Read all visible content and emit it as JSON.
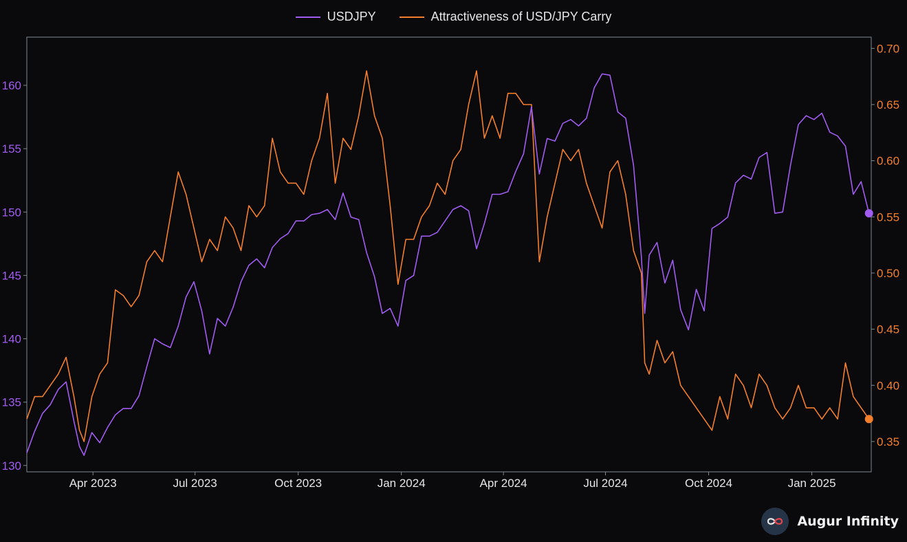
{
  "legend": {
    "series1": "USDJPY",
    "series2": "Attractiveness of USD/JPY Carry"
  },
  "brand": {
    "name": "Augur Infinity"
  },
  "colors": {
    "background": "#0a090c",
    "purple": "#a05cf0",
    "orange": "#f37f2c",
    "axis": "#7d8a94",
    "text": "#e6e6e6"
  },
  "chart_data": {
    "type": "line",
    "x_axis": {
      "ticks": [
        "Apr 2023",
        "Jul 2023",
        "Oct 2023",
        "Jan 2024",
        "Apr 2024",
        "Jul 2024",
        "Oct 2024",
        "Jan 2025"
      ],
      "range": [
        "2023-02-01",
        "2025-02-23"
      ]
    },
    "y_left": {
      "range": [
        129.5,
        163.8
      ],
      "ticks": [
        130,
        135,
        140,
        145,
        150,
        155,
        160
      ]
    },
    "y_right": {
      "range": [
        0.323,
        0.71
      ],
      "ticks": [
        "0.35",
        "0.40",
        "0.45",
        "0.50",
        "0.55",
        "0.60",
        "0.65",
        "0.70"
      ]
    },
    "grid": false,
    "legend_position": "top-center",
    "series": [
      {
        "name": "USDJPY",
        "axis": "left",
        "color": "#a05cf0",
        "end_marker": true,
        "points": [
          [
            "2023-02-01",
            131.0
          ],
          [
            "2023-02-08",
            132.7
          ],
          [
            "2023-02-15",
            134.1
          ],
          [
            "2023-02-22",
            134.8
          ],
          [
            "2023-03-01",
            136.0
          ],
          [
            "2023-03-08",
            136.6
          ],
          [
            "2023-03-15",
            133.5
          ],
          [
            "2023-03-20",
            131.5
          ],
          [
            "2023-03-24",
            130.8
          ],
          [
            "2023-03-31",
            132.6
          ],
          [
            "2023-04-07",
            131.8
          ],
          [
            "2023-04-14",
            133.0
          ],
          [
            "2023-04-21",
            134.0
          ],
          [
            "2023-04-28",
            134.5
          ],
          [
            "2023-05-05",
            134.5
          ],
          [
            "2023-05-12",
            135.5
          ],
          [
            "2023-05-19",
            137.8
          ],
          [
            "2023-05-26",
            140.0
          ],
          [
            "2023-06-02",
            139.6
          ],
          [
            "2023-06-09",
            139.3
          ],
          [
            "2023-06-16",
            141.0
          ],
          [
            "2023-06-23",
            143.3
          ],
          [
            "2023-06-30",
            144.5
          ],
          [
            "2023-07-07",
            142.2
          ],
          [
            "2023-07-14",
            138.8
          ],
          [
            "2023-07-21",
            141.6
          ],
          [
            "2023-07-28",
            141.0
          ],
          [
            "2023-08-04",
            142.5
          ],
          [
            "2023-08-11",
            144.5
          ],
          [
            "2023-08-18",
            145.8
          ],
          [
            "2023-08-25",
            146.3
          ],
          [
            "2023-09-01",
            145.6
          ],
          [
            "2023-09-08",
            147.2
          ],
          [
            "2023-09-15",
            147.9
          ],
          [
            "2023-09-22",
            148.3
          ],
          [
            "2023-09-29",
            149.3
          ],
          [
            "2023-10-06",
            149.3
          ],
          [
            "2023-10-13",
            149.8
          ],
          [
            "2023-10-20",
            149.9
          ],
          [
            "2023-10-27",
            150.2
          ],
          [
            "2023-11-03",
            149.4
          ],
          [
            "2023-11-10",
            151.5
          ],
          [
            "2023-11-17",
            149.6
          ],
          [
            "2023-11-24",
            149.4
          ],
          [
            "2023-12-01",
            146.8
          ],
          [
            "2023-12-08",
            144.9
          ],
          [
            "2023-12-15",
            142.0
          ],
          [
            "2023-12-22",
            142.4
          ],
          [
            "2023-12-29",
            141.0
          ],
          [
            "2024-01-05",
            144.6
          ],
          [
            "2024-01-12",
            145.0
          ],
          [
            "2024-01-19",
            148.1
          ],
          [
            "2024-01-26",
            148.1
          ],
          [
            "2024-02-02",
            148.4
          ],
          [
            "2024-02-09",
            149.3
          ],
          [
            "2024-02-16",
            150.2
          ],
          [
            "2024-02-23",
            150.5
          ],
          [
            "2024-03-01",
            150.1
          ],
          [
            "2024-03-08",
            147.1
          ],
          [
            "2024-03-15",
            149.1
          ],
          [
            "2024-03-22",
            151.4
          ],
          [
            "2024-03-29",
            151.4
          ],
          [
            "2024-04-05",
            151.6
          ],
          [
            "2024-04-12",
            153.2
          ],
          [
            "2024-04-19",
            154.6
          ],
          [
            "2024-04-26",
            158.3
          ],
          [
            "2024-05-03",
            153.0
          ],
          [
            "2024-05-10",
            155.8
          ],
          [
            "2024-05-17",
            155.6
          ],
          [
            "2024-05-24",
            157.0
          ],
          [
            "2024-05-31",
            157.3
          ],
          [
            "2024-06-07",
            156.8
          ],
          [
            "2024-06-14",
            157.4
          ],
          [
            "2024-06-21",
            159.8
          ],
          [
            "2024-06-28",
            160.9
          ],
          [
            "2024-07-05",
            160.8
          ],
          [
            "2024-07-12",
            157.9
          ],
          [
            "2024-07-19",
            157.4
          ],
          [
            "2024-07-26",
            153.7
          ],
          [
            "2024-08-02",
            146.5
          ],
          [
            "2024-08-05",
            142.0
          ],
          [
            "2024-08-09",
            146.6
          ],
          [
            "2024-08-16",
            147.6
          ],
          [
            "2024-08-23",
            144.4
          ],
          [
            "2024-08-30",
            146.2
          ],
          [
            "2024-09-06",
            142.3
          ],
          [
            "2024-09-13",
            140.7
          ],
          [
            "2024-09-20",
            143.9
          ],
          [
            "2024-09-27",
            142.2
          ],
          [
            "2024-10-04",
            148.7
          ],
          [
            "2024-10-11",
            149.1
          ],
          [
            "2024-10-18",
            149.6
          ],
          [
            "2024-10-25",
            152.3
          ],
          [
            "2024-11-01",
            152.9
          ],
          [
            "2024-11-08",
            152.6
          ],
          [
            "2024-11-15",
            154.3
          ],
          [
            "2024-11-22",
            154.7
          ],
          [
            "2024-11-29",
            149.9
          ],
          [
            "2024-12-06",
            150.0
          ],
          [
            "2024-12-13",
            153.7
          ],
          [
            "2024-12-20",
            156.9
          ],
          [
            "2024-12-27",
            157.6
          ],
          [
            "2025-01-03",
            157.3
          ],
          [
            "2025-01-10",
            157.8
          ],
          [
            "2025-01-17",
            156.3
          ],
          [
            "2025-01-24",
            156.0
          ],
          [
            "2025-01-31",
            155.2
          ],
          [
            "2025-02-07",
            151.4
          ],
          [
            "2025-02-14",
            152.4
          ],
          [
            "2025-02-21",
            149.9
          ]
        ]
      },
      {
        "name": "Attractiveness of USD/JPY Carry",
        "axis": "right",
        "color": "#f37f2c",
        "end_marker": true,
        "points": [
          [
            "2023-02-01",
            0.37
          ],
          [
            "2023-02-08",
            0.39
          ],
          [
            "2023-02-15",
            0.39
          ],
          [
            "2023-02-22",
            0.4
          ],
          [
            "2023-03-01",
            0.41
          ],
          [
            "2023-03-08",
            0.425
          ],
          [
            "2023-03-15",
            0.39
          ],
          [
            "2023-03-20",
            0.36
          ],
          [
            "2023-03-24",
            0.35
          ],
          [
            "2023-03-31",
            0.39
          ],
          [
            "2023-04-07",
            0.41
          ],
          [
            "2023-04-14",
            0.42
          ],
          [
            "2023-04-21",
            0.485
          ],
          [
            "2023-04-28",
            0.48
          ],
          [
            "2023-05-05",
            0.47
          ],
          [
            "2023-05-12",
            0.48
          ],
          [
            "2023-05-19",
            0.51
          ],
          [
            "2023-05-26",
            0.52
          ],
          [
            "2023-06-02",
            0.51
          ],
          [
            "2023-06-09",
            0.55
          ],
          [
            "2023-06-16",
            0.59
          ],
          [
            "2023-06-23",
            0.57
          ],
          [
            "2023-06-30",
            0.54
          ],
          [
            "2023-07-07",
            0.51
          ],
          [
            "2023-07-14",
            0.53
          ],
          [
            "2023-07-21",
            0.52
          ],
          [
            "2023-07-28",
            0.55
          ],
          [
            "2023-08-04",
            0.54
          ],
          [
            "2023-08-11",
            0.52
          ],
          [
            "2023-08-18",
            0.56
          ],
          [
            "2023-08-25",
            0.55
          ],
          [
            "2023-09-01",
            0.56
          ],
          [
            "2023-09-08",
            0.62
          ],
          [
            "2023-09-15",
            0.59
          ],
          [
            "2023-09-22",
            0.58
          ],
          [
            "2023-09-29",
            0.58
          ],
          [
            "2023-10-06",
            0.57
          ],
          [
            "2023-10-13",
            0.6
          ],
          [
            "2023-10-20",
            0.62
          ],
          [
            "2023-10-27",
            0.66
          ],
          [
            "2023-11-03",
            0.58
          ],
          [
            "2023-11-10",
            0.62
          ],
          [
            "2023-11-17",
            0.61
          ],
          [
            "2023-11-24",
            0.64
          ],
          [
            "2023-12-01",
            0.68
          ],
          [
            "2023-12-08",
            0.64
          ],
          [
            "2023-12-15",
            0.62
          ],
          [
            "2023-12-22",
            0.56
          ],
          [
            "2023-12-29",
            0.49
          ],
          [
            "2024-01-05",
            0.53
          ],
          [
            "2024-01-12",
            0.53
          ],
          [
            "2024-01-19",
            0.55
          ],
          [
            "2024-01-26",
            0.56
          ],
          [
            "2024-02-02",
            0.58
          ],
          [
            "2024-02-09",
            0.57
          ],
          [
            "2024-02-16",
            0.6
          ],
          [
            "2024-02-23",
            0.61
          ],
          [
            "2024-03-01",
            0.65
          ],
          [
            "2024-03-08",
            0.68
          ],
          [
            "2024-03-15",
            0.62
          ],
          [
            "2024-03-22",
            0.64
          ],
          [
            "2024-03-29",
            0.62
          ],
          [
            "2024-04-05",
            0.66
          ],
          [
            "2024-04-12",
            0.66
          ],
          [
            "2024-04-19",
            0.65
          ],
          [
            "2024-04-26",
            0.65
          ],
          [
            "2024-05-03",
            0.51
          ],
          [
            "2024-05-10",
            0.55
          ],
          [
            "2024-05-17",
            0.58
          ],
          [
            "2024-05-24",
            0.61
          ],
          [
            "2024-05-31",
            0.6
          ],
          [
            "2024-06-07",
            0.61
          ],
          [
            "2024-06-14",
            0.58
          ],
          [
            "2024-06-21",
            0.56
          ],
          [
            "2024-06-28",
            0.54
          ],
          [
            "2024-07-05",
            0.59
          ],
          [
            "2024-07-12",
            0.6
          ],
          [
            "2024-07-19",
            0.57
          ],
          [
            "2024-07-26",
            0.52
          ],
          [
            "2024-08-02",
            0.5
          ],
          [
            "2024-08-05",
            0.42
          ],
          [
            "2024-08-09",
            0.41
          ],
          [
            "2024-08-16",
            0.44
          ],
          [
            "2024-08-23",
            0.42
          ],
          [
            "2024-08-30",
            0.43
          ],
          [
            "2024-09-06",
            0.4
          ],
          [
            "2024-09-13",
            0.39
          ],
          [
            "2024-09-20",
            0.38
          ],
          [
            "2024-09-27",
            0.37
          ],
          [
            "2024-10-04",
            0.36
          ],
          [
            "2024-10-11",
            0.39
          ],
          [
            "2024-10-18",
            0.37
          ],
          [
            "2024-10-25",
            0.41
          ],
          [
            "2024-11-01",
            0.4
          ],
          [
            "2024-11-08",
            0.38
          ],
          [
            "2024-11-15",
            0.41
          ],
          [
            "2024-11-22",
            0.4
          ],
          [
            "2024-11-29",
            0.38
          ],
          [
            "2024-12-06",
            0.37
          ],
          [
            "2024-12-13",
            0.38
          ],
          [
            "2024-12-20",
            0.4
          ],
          [
            "2024-12-27",
            0.38
          ],
          [
            "2025-01-03",
            0.38
          ],
          [
            "2025-01-10",
            0.37
          ],
          [
            "2025-01-17",
            0.38
          ],
          [
            "2025-01-24",
            0.37
          ],
          [
            "2025-01-31",
            0.42
          ],
          [
            "2025-02-07",
            0.39
          ],
          [
            "2025-02-14",
            0.38
          ],
          [
            "2025-02-21",
            0.37
          ]
        ]
      }
    ]
  }
}
